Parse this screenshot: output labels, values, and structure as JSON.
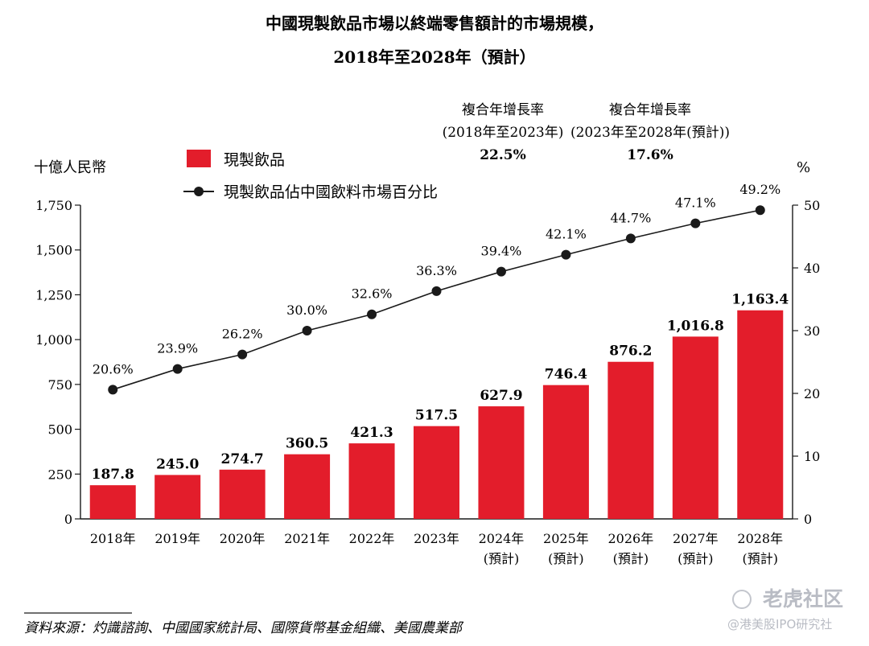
{
  "chart_data": {
    "type": "bar",
    "title": [
      "中國現製飲品市場以終端零售額計的市場規模，",
      "2018年至2028年（預計）"
    ],
    "ylabel_left": "十億人民幣",
    "ylabel_right": "%",
    "categories": [
      [
        "2018年"
      ],
      [
        "2019年"
      ],
      [
        "2020年"
      ],
      [
        "2021年"
      ],
      [
        "2022年"
      ],
      [
        "2023年"
      ],
      [
        "2024年",
        "(預計)"
      ],
      [
        "2025年",
        "(預計)"
      ],
      [
        "2026年",
        "(預計)"
      ],
      [
        "2027年",
        "(預計)"
      ],
      [
        "2028年",
        "(預計)"
      ]
    ],
    "ylim_left": [
      0,
      1750
    ],
    "yticks_left": [
      "0",
      "250",
      "500",
      "750",
      "1,000",
      "1,250",
      "1,500",
      "1,750"
    ],
    "ylim_right": [
      0,
      50
    ],
    "yticks_right": [
      "0",
      "10",
      "20",
      "30",
      "40",
      "50"
    ],
    "series": [
      {
        "name": "現製飲品",
        "type": "bar",
        "axis": "left",
        "color": "#e31d2b",
        "values": [
          187.8,
          245.0,
          274.7,
          360.5,
          421.3,
          517.5,
          627.9,
          746.4,
          876.2,
          1016.8,
          1163.4
        ],
        "labels": [
          "187.8",
          "245.0",
          "274.7",
          "360.5",
          "421.3",
          "517.5",
          "627.9",
          "746.4",
          "876.2",
          "1,016.8",
          "1,163.4"
        ]
      },
      {
        "name": "現製飲品佔中國飲料市場百分比",
        "type": "line",
        "axis": "right",
        "color": "#1a1a1a",
        "values": [
          20.6,
          23.9,
          26.2,
          30.0,
          32.6,
          36.3,
          39.4,
          42.1,
          44.7,
          47.1,
          49.2
        ],
        "labels": [
          "20.6%",
          "23.9%",
          "26.2%",
          "30.0%",
          "32.6%",
          "36.3%",
          "39.4%",
          "42.1%",
          "44.7%",
          "47.1%",
          "49.2%"
        ]
      }
    ],
    "legend_position": "top-left",
    "grid": false,
    "annotations": [
      {
        "lines": [
          "複合年增長率",
          "(2018年至2023年)"
        ],
        "value": "22.5%"
      },
      {
        "lines": [
          "複合年增長率",
          "(2023年至2028年(預計))"
        ],
        "value": "17.6%"
      }
    ],
    "source": "資料來源：灼識諮詢、中國國家統計局、國際貨幣基金組織、美國農業部"
  },
  "watermark": {
    "line1": "老虎社区",
    "line2": "@港美股IPO研究社"
  }
}
